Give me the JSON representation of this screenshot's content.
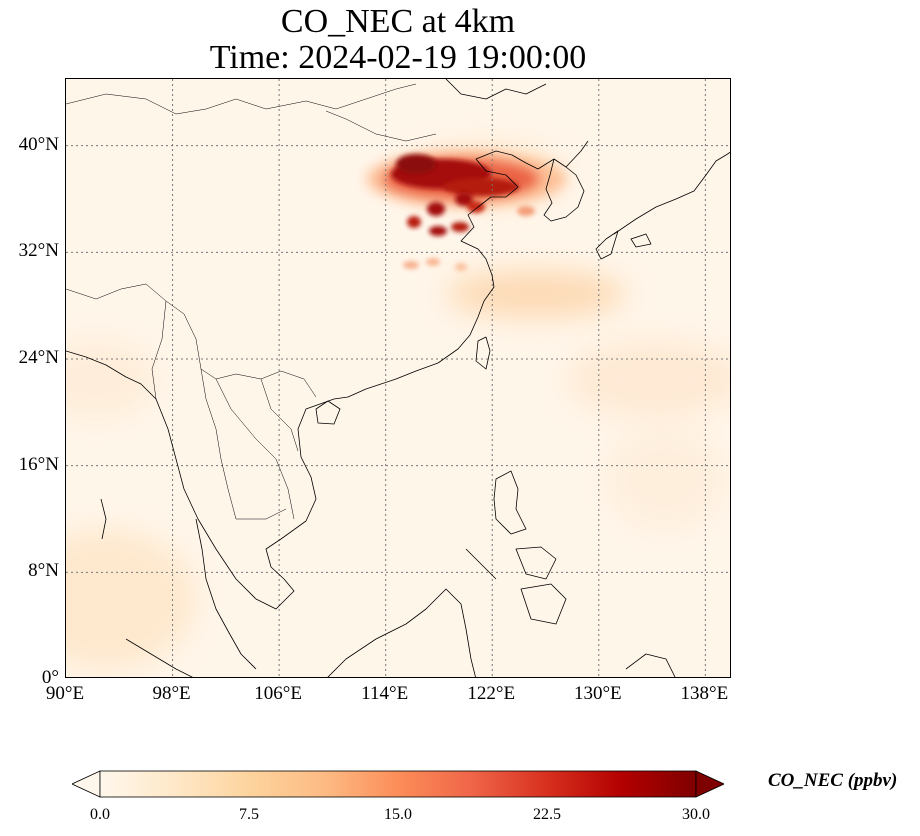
{
  "title": {
    "line1": "CO_NEC at 4km",
    "line2": "Time: 2024-02-19 19:00:00"
  },
  "map": {
    "extent": {
      "lon_min": 90,
      "lon_max": 140,
      "lat_min": 0,
      "lat_max": 45
    },
    "lat_ticks": [
      {
        "value": 40,
        "label": "40°N"
      },
      {
        "value": 32,
        "label": "32°N"
      },
      {
        "value": 24,
        "label": "24°N"
      },
      {
        "value": 16,
        "label": "16°N"
      },
      {
        "value": 8,
        "label": "8°N"
      },
      {
        "value": 0,
        "label": "0°"
      }
    ],
    "lon_ticks": [
      {
        "value": 90,
        "label": "90°E"
      },
      {
        "value": 98,
        "label": "98°E"
      },
      {
        "value": 106,
        "label": "106°E"
      },
      {
        "value": 114,
        "label": "114°E"
      },
      {
        "value": 122,
        "label": "122°E"
      },
      {
        "value": 130,
        "label": "130°E"
      },
      {
        "value": 138,
        "label": "138°E"
      }
    ],
    "gridlines": "dotted",
    "colors": {
      "background": "#fff6ea",
      "coastline": "#000000",
      "grid": "#777777"
    }
  },
  "colorbar": {
    "label": "CO_NEC (ppbv)",
    "min": 0,
    "max": 30,
    "colormap": "OrRd",
    "ticks": [
      {
        "value": 0,
        "label": "0.0"
      },
      {
        "value": 7.5,
        "label": "7.5"
      },
      {
        "value": 15,
        "label": "15.0"
      },
      {
        "value": 22.5,
        "label": "22.5"
      },
      {
        "value": 30,
        "label": "30.0"
      }
    ]
  }
}
